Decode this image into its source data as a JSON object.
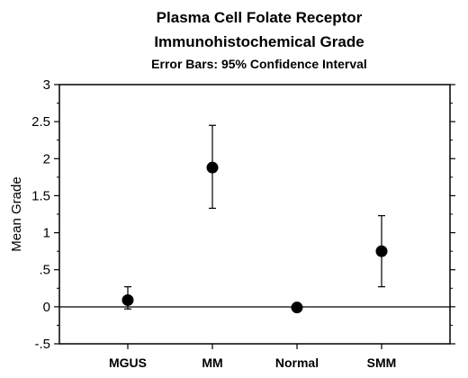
{
  "chart_data": {
    "type": "scatter",
    "title": "Plasma Cell Folate Receptor",
    "title_line2": "Immunohistochemical Grade",
    "subtitle": "Error Bars: 95% Confidence Interval",
    "xlabel": "",
    "ylabel": "Mean Grade",
    "ylim": [
      -0.5,
      3
    ],
    "yticks": [
      -0.5,
      0,
      0.5,
      1,
      1.5,
      2,
      2.5,
      3
    ],
    "ytick_labels": [
      "-.5",
      "0",
      ".5",
      "1",
      "1.5",
      "2",
      "2.5",
      "3"
    ],
    "categories": [
      "MGUS",
      "MM",
      "Normal",
      "SMM"
    ],
    "values": [
      0.09,
      1.88,
      -0.01,
      0.75
    ],
    "error_low": [
      -0.03,
      1.33,
      null,
      0.27
    ],
    "error_high": [
      0.27,
      2.45,
      null,
      1.23
    ],
    "reference_line": 0,
    "grid": false,
    "legend": "none",
    "colors": {
      "marker": "#000000",
      "axis": "#000000",
      "background": "#ffffff"
    }
  }
}
